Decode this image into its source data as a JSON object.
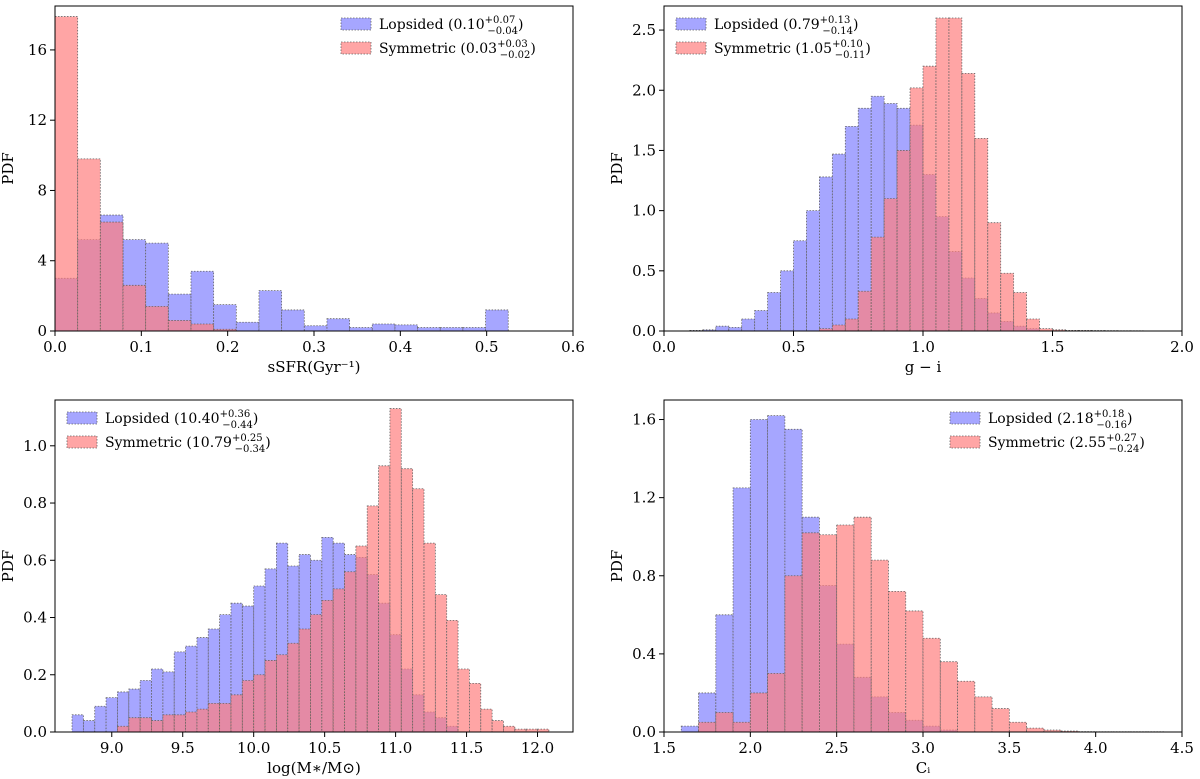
{
  "colors": {
    "lopsided": "#8080ff",
    "symmetric": "#ff7f7f",
    "edge": "#666666",
    "axis": "#000000"
  },
  "chart_data": [
    {
      "id": "ssfr",
      "type": "bar",
      "title": "",
      "xlabel": "sSFR(Gyr⁻¹)",
      "ylabel": "PDF",
      "xlim": [
        0.0,
        0.6
      ],
      "ylim": [
        0,
        18.5
      ],
      "xticks": [
        0.0,
        0.1,
        0.2,
        0.3,
        0.4,
        0.5,
        0.6
      ],
      "xtick_labels": [
        "0.0",
        "0.1",
        "0.2",
        "0.3",
        "0.4",
        "0.5",
        "0.6"
      ],
      "yticks": [
        0,
        4,
        8,
        12,
        16
      ],
      "ytick_labels": [
        "0",
        "4",
        "8",
        "12",
        "16"
      ],
      "legend_position": "top-right",
      "series": [
        {
          "name": "Lopsided",
          "legend_value": "0.10",
          "legend_sup": "+0.07",
          "legend_sub": "−0.04",
          "bin_edges": [
            0.0,
            0.02625,
            0.0525,
            0.07875,
            0.105,
            0.13125,
            0.1575,
            0.18375,
            0.21,
            0.23625,
            0.2625,
            0.28875,
            0.315,
            0.34125,
            0.3675,
            0.39375,
            0.42,
            0.44625,
            0.4725,
            0.49875,
            0.525
          ],
          "values": [
            3.0,
            5.2,
            6.6,
            5.2,
            5.0,
            2.1,
            3.4,
            1.5,
            0.5,
            2.3,
            1.2,
            0.3,
            0.7,
            0.2,
            0.4,
            0.35,
            0.2,
            0.2,
            0.2,
            1.2
          ]
        },
        {
          "name": "Symmetric",
          "legend_value": "0.03",
          "legend_sup": "+0.03",
          "legend_sub": "−0.02",
          "bin_edges": [
            0.0,
            0.02625,
            0.0525,
            0.07875,
            0.105,
            0.13125,
            0.1575,
            0.18375,
            0.21
          ],
          "values": [
            17.9,
            9.8,
            6.2,
            2.6,
            1.4,
            0.6,
            0.4,
            0.1
          ]
        }
      ]
    },
    {
      "id": "g-i",
      "type": "bar",
      "title": "",
      "xlabel": "g − i",
      "ylabel": "PDF",
      "xlim": [
        0.0,
        2.0
      ],
      "ylim": [
        0,
        2.7
      ],
      "xticks": [
        0.0,
        0.5,
        1.0,
        1.5,
        2.0
      ],
      "xtick_labels": [
        "0.0",
        "0.5",
        "1.0",
        "1.5",
        "2.0"
      ],
      "yticks": [
        0.0,
        0.5,
        1.0,
        1.5,
        2.0,
        2.5
      ],
      "ytick_labels": [
        "0.0",
        "0.5",
        "1.0",
        "1.5",
        "2.0",
        "2.5"
      ],
      "legend_position": "top-left",
      "series": [
        {
          "name": "Lopsided",
          "legend_value": "0.79",
          "legend_sup": "+0.13",
          "legend_sub": "−0.14",
          "bin_edges": [
            0.1,
            0.15,
            0.2,
            0.25,
            0.3,
            0.35,
            0.4,
            0.45,
            0.5,
            0.55,
            0.6,
            0.65,
            0.7,
            0.75,
            0.8,
            0.85,
            0.9,
            0.95,
            1.0,
            1.05,
            1.1,
            1.15,
            1.2,
            1.25,
            1.3,
            1.35,
            1.4,
            1.45
          ],
          "values": [
            0.005,
            0.01,
            0.04,
            0.03,
            0.1,
            0.17,
            0.32,
            0.5,
            0.75,
            1.0,
            1.28,
            1.47,
            1.7,
            1.85,
            1.95,
            1.89,
            1.85,
            1.71,
            1.3,
            0.95,
            0.66,
            0.44,
            0.27,
            0.15,
            0.08,
            0.04,
            0.02
          ]
        },
        {
          "name": "Symmetric",
          "legend_value": "1.05",
          "legend_sup": "+0.10",
          "legend_sub": "−0.11",
          "bin_edges": [
            0.6,
            0.65,
            0.7,
            0.75,
            0.8,
            0.85,
            0.9,
            0.95,
            1.0,
            1.05,
            1.1,
            1.15,
            1.2,
            1.25,
            1.3,
            1.35,
            1.4,
            1.45,
            1.5,
            1.55,
            1.6,
            1.65,
            1.7,
            1.75,
            1.8,
            1.85,
            1.9,
            1.95
          ],
          "values": [
            0.02,
            0.05,
            0.1,
            0.33,
            0.78,
            1.1,
            1.5,
            2.02,
            2.2,
            2.6,
            2.6,
            2.14,
            1.6,
            0.9,
            0.48,
            0.32,
            0.1,
            0.02,
            0.01,
            0.005,
            0.005,
            0.004,
            0.003,
            0.002,
            0.002,
            0.001,
            0.001
          ]
        }
      ]
    },
    {
      "id": "mstar",
      "type": "bar",
      "title": "",
      "xlabel": "log(M∗/M⊙)",
      "ylabel": "PDF",
      "xlim": [
        8.6,
        12.25
      ],
      "ylim": [
        0,
        1.16
      ],
      "xticks": [
        9.0,
        9.5,
        10.0,
        10.5,
        11.0,
        11.5,
        12.0
      ],
      "xtick_labels": [
        "9.0",
        "9.5",
        "10.0",
        "10.5",
        "11.0",
        "11.5",
        "12.0"
      ],
      "yticks": [
        0.0,
        0.2,
        0.4,
        0.6,
        0.8,
        1.0
      ],
      "ytick_labels": [
        "0.0",
        "0.2",
        "0.4",
        "0.6",
        "0.8",
        "1.0"
      ],
      "legend_position": "top-left",
      "series": [
        {
          "name": "Lopsided",
          "legend_value": "10.40",
          "legend_sup": "+0.36",
          "legend_sub": "−0.44",
          "bin_edges": [
            8.72,
            8.8,
            8.88,
            8.96,
            9.04,
            9.12,
            9.2,
            9.28,
            9.36,
            9.44,
            9.52,
            9.6,
            9.68,
            9.76,
            9.84,
            9.92,
            10.0,
            10.08,
            10.16,
            10.24,
            10.32,
            10.4,
            10.48,
            10.56,
            10.64,
            10.72,
            10.8,
            10.88,
            10.96,
            11.04,
            11.12,
            11.2,
            11.28,
            11.36,
            11.44
          ],
          "values": [
            0.06,
            0.04,
            0.09,
            0.12,
            0.14,
            0.15,
            0.18,
            0.22,
            0.21,
            0.28,
            0.3,
            0.33,
            0.36,
            0.41,
            0.45,
            0.44,
            0.51,
            0.57,
            0.66,
            0.58,
            0.62,
            0.6,
            0.68,
            0.66,
            0.62,
            0.61,
            0.55,
            0.45,
            0.34,
            0.22,
            0.13,
            0.07,
            0.05,
            0.02
          ]
        },
        {
          "name": "Symmetric",
          "legend_value": "10.79",
          "legend_sup": "+0.25",
          "legend_sub": "−0.34",
          "bin_edges": [
            9.04,
            9.12,
            9.2,
            9.28,
            9.36,
            9.44,
            9.52,
            9.6,
            9.68,
            9.76,
            9.84,
            9.92,
            10.0,
            10.08,
            10.16,
            10.24,
            10.32,
            10.4,
            10.48,
            10.56,
            10.64,
            10.72,
            10.8,
            10.88,
            10.96,
            11.04,
            11.12,
            11.2,
            11.28,
            11.36,
            11.44,
            11.52,
            11.6,
            11.68,
            11.76,
            11.84,
            11.92,
            12.0,
            12.08
          ],
          "values": [
            0.02,
            0.05,
            0.05,
            0.04,
            0.06,
            0.06,
            0.07,
            0.08,
            0.1,
            0.1,
            0.13,
            0.18,
            0.2,
            0.25,
            0.27,
            0.31,
            0.36,
            0.41,
            0.46,
            0.5,
            0.56,
            0.65,
            0.79,
            0.93,
            1.13,
            0.92,
            0.85,
            0.66,
            0.48,
            0.39,
            0.22,
            0.17,
            0.08,
            0.04,
            0.02,
            0.01,
            0.01,
            0.01
          ]
        }
      ]
    },
    {
      "id": "ci",
      "type": "bar",
      "title": "",
      "xlabel": "Cᵢ",
      "ylabel": "PDF",
      "xlim": [
        1.5,
        4.5
      ],
      "ylim": [
        0,
        1.7
      ],
      "xticks": [
        1.5,
        2.0,
        2.5,
        3.0,
        3.5,
        4.0,
        4.5
      ],
      "xtick_labels": [
        "1.5",
        "2.0",
        "2.5",
        "3.0",
        "3.5",
        "4.0",
        "4.5"
      ],
      "yticks": [
        0.0,
        0.4,
        0.8,
        1.2,
        1.6
      ],
      "ytick_labels": [
        "0.0",
        "0.4",
        "0.8",
        "1.2",
        "1.6"
      ],
      "legend_position": "top-right",
      "series": [
        {
          "name": "Lopsided",
          "legend_value": "2.18",
          "legend_sup": "+0.18",
          "legend_sub": "−0.16",
          "bin_edges": [
            1.6,
            1.7,
            1.8,
            1.9,
            2.0,
            2.1,
            2.2,
            2.3,
            2.4,
            2.5,
            2.6,
            2.7,
            2.8,
            2.9,
            3.0,
            3.1,
            3.2
          ],
          "values": [
            0.03,
            0.2,
            0.6,
            1.25,
            1.6,
            1.62,
            1.55,
            1.1,
            0.75,
            0.45,
            0.28,
            0.18,
            0.1,
            0.06,
            0.03,
            0.01
          ]
        },
        {
          "name": "Symmetric",
          "legend_value": "2.55",
          "legend_sup": "+0.27",
          "legend_sub": "−0.24",
          "bin_edges": [
            1.7,
            1.8,
            1.9,
            2.0,
            2.1,
            2.2,
            2.3,
            2.4,
            2.5,
            2.6,
            2.7,
            2.8,
            2.9,
            3.0,
            3.1,
            3.2,
            3.3,
            3.4,
            3.5,
            3.6,
            3.7,
            3.8,
            3.9,
            4.0,
            4.1,
            4.2,
            4.3,
            4.4
          ],
          "values": [
            0.05,
            0.1,
            0.05,
            0.2,
            0.3,
            0.8,
            1.02,
            1.01,
            1.06,
            1.1,
            0.88,
            0.72,
            0.62,
            0.48,
            0.36,
            0.26,
            0.18,
            0.12,
            0.05,
            0.02,
            0.01,
            0.005,
            0.002,
            0.001,
            0.001,
            0.001,
            0.001
          ]
        }
      ]
    }
  ]
}
